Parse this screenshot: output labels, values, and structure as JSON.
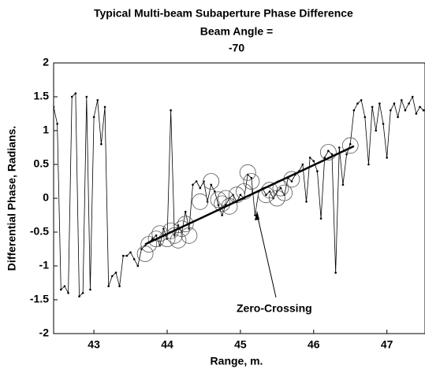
{
  "chart_data": {
    "type": "line",
    "title": "Typical Multi-beam Subaperture Phase Difference",
    "subtitle": [
      "Beam Angle =",
      "-70"
    ],
    "x_label": "Range, m.",
    "y_label": "Differential Phase, Radians.",
    "annotation": "Zero-Crossing",
    "xlim": [
      42.45,
      47.52
    ],
    "ylim": [
      -2,
      2
    ],
    "xticks": [
      43,
      44,
      45,
      46,
      47
    ],
    "yticks": [
      -2,
      -1.5,
      -1,
      -0.5,
      0,
      0.5,
      1,
      1.5,
      2
    ],
    "series": [
      {
        "type": "line",
        "color": "#000000",
        "x": [
          42.45,
          42.5,
          42.55,
          42.6,
          42.65,
          42.7,
          42.75,
          42.8,
          42.85,
          42.9,
          42.95,
          43.0,
          43.05,
          43.1,
          43.15,
          43.2,
          43.25,
          43.3,
          43.35,
          43.4,
          43.45,
          43.5,
          43.55,
          43.6,
          43.65,
          43.7,
          43.75,
          43.8,
          43.85,
          43.9,
          43.95,
          44.0,
          44.05,
          44.1,
          44.15,
          44.2,
          44.25,
          44.3,
          44.35,
          44.4,
          44.45,
          44.5,
          44.55,
          44.6,
          44.65,
          44.7,
          44.75,
          44.8,
          44.85,
          44.9,
          44.95,
          45.0,
          45.05,
          45.1,
          45.15,
          45.2,
          45.25,
          45.3,
          45.35,
          45.4,
          45.45,
          45.5,
          45.55,
          45.6,
          45.65,
          45.7,
          45.75,
          45.8,
          45.85,
          45.9,
          45.95,
          46.0,
          46.05,
          46.1,
          46.15,
          46.2,
          46.25,
          46.3,
          46.35,
          46.4,
          46.45,
          46.5,
          46.55,
          46.6,
          46.65,
          46.7,
          46.75,
          46.8,
          46.85,
          46.9,
          46.95,
          47.0,
          47.05,
          47.1,
          47.15,
          47.2,
          47.25,
          47.3,
          47.35,
          47.4,
          47.45,
          47.5
        ],
        "values": [
          1.35,
          1.1,
          -1.35,
          -1.3,
          -1.4,
          1.5,
          1.55,
          -1.45,
          -1.4,
          1.5,
          -1.35,
          1.2,
          1.45,
          0.8,
          1.35,
          -1.3,
          -1.15,
          -1.1,
          -1.3,
          -0.85,
          -0.85,
          -0.8,
          -0.9,
          -1.0,
          -0.75,
          -0.7,
          -0.65,
          -0.6,
          -0.55,
          -0.7,
          -0.45,
          -0.6,
          1.3,
          -0.55,
          -0.4,
          -0.5,
          -0.2,
          -0.45,
          0.2,
          0.25,
          0.15,
          0.25,
          -0.05,
          0.2,
          0.1,
          -0.1,
          -0.25,
          -0.1,
          0.0,
          0.05,
          -0.05,
          0.05,
          0.0,
          0.35,
          0.3,
          -0.25,
          0.1,
          0.15,
          0.05,
          0.1,
          0.0,
          0.1,
          0.15,
          0.05,
          0.3,
          0.25,
          0.35,
          0.4,
          0.5,
          -0.05,
          0.6,
          0.55,
          0.4,
          -0.3,
          0.6,
          0.7,
          0.65,
          -1.1,
          0.75,
          0.2,
          0.65,
          0.8,
          1.3,
          1.4,
          1.45,
          1.2,
          0.5,
          1.35,
          1.0,
          1.4,
          1.1,
          0.6,
          1.3,
          1.4,
          1.2,
          1.45,
          1.3,
          1.4,
          1.5,
          1.25,
          1.35,
          1.3
        ]
      },
      {
        "type": "scatter",
        "color": "#555555",
        "x": [
          43.7,
          43.75,
          43.85,
          43.9,
          44.0,
          44.05,
          44.1,
          44.15,
          44.2,
          44.25,
          44.3,
          44.45,
          44.6,
          44.7,
          44.75,
          44.8,
          44.85,
          44.95,
          45.05,
          45.1,
          45.15,
          45.35,
          45.4,
          45.5,
          45.55,
          45.6,
          45.7,
          46.2,
          46.5
        ],
        "values": [
          -0.82,
          -0.68,
          -0.6,
          -0.52,
          -0.6,
          -0.48,
          -0.55,
          -0.62,
          -0.45,
          -0.38,
          -0.55,
          -0.05,
          0.25,
          -0.02,
          -0.08,
          0.0,
          -0.12,
          0.05,
          0.1,
          0.38,
          0.25,
          0.05,
          0.12,
          0.0,
          0.15,
          0.08,
          0.28,
          0.68,
          0.78
        ]
      },
      {
        "type": "fit",
        "color": "#000000",
        "x": [
          43.7,
          46.55
        ],
        "values": [
          -0.68,
          0.77
        ]
      }
    ]
  }
}
